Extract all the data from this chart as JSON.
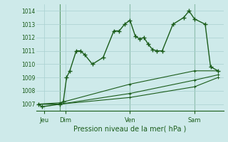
{
  "xlabel": "Pression niveau de la mer( hPa )",
  "bg_color": "#ceeaea",
  "grid_color": "#a8d0d0",
  "line_color": "#1a5c1a",
  "vline_color": "#5a9a6a",
  "ylim": [
    1006.5,
    1014.5
  ],
  "xlim": [
    -0.2,
    17.2
  ],
  "yticks": [
    1007,
    1008,
    1009,
    1010,
    1011,
    1012,
    1013,
    1014
  ],
  "day_positions": [
    0.5,
    2.5,
    8.5,
    14.5
  ],
  "day_labels": [
    "Jeu",
    "Dim",
    "Ven",
    "Sam"
  ],
  "vlines": [
    2.0,
    8.5,
    14.5
  ],
  "series1_x": [
    0.0,
    0.3,
    2.0,
    2.3,
    2.6,
    2.9,
    3.5,
    3.9,
    4.3,
    5.0,
    6.0,
    7.0,
    7.5,
    8.0,
    8.5,
    9.0,
    9.4,
    9.8,
    10.2,
    10.6,
    11.0,
    11.5,
    12.5,
    13.5,
    14.0,
    14.5,
    15.5,
    16.0,
    16.7
  ],
  "series1_y": [
    1007.0,
    1006.8,
    1007.0,
    1007.2,
    1009.0,
    1009.5,
    1011.0,
    1011.0,
    1010.7,
    1010.0,
    1010.5,
    1012.5,
    1012.5,
    1013.0,
    1013.3,
    1012.1,
    1011.9,
    1012.0,
    1011.5,
    1011.1,
    1011.0,
    1011.0,
    1013.0,
    1013.5,
    1014.0,
    1013.4,
    1013.0,
    1009.8,
    1009.5
  ],
  "series2_x": [
    0.0,
    2.0,
    8.5,
    14.5,
    16.7
  ],
  "series2_y": [
    1007.0,
    1007.1,
    1008.5,
    1009.5,
    1009.5
  ],
  "series3_x": [
    0.0,
    2.0,
    8.5,
    14.5,
    16.7
  ],
  "series3_y": [
    1007.0,
    1007.0,
    1007.8,
    1008.8,
    1009.2
  ],
  "series4_x": [
    0.0,
    2.0,
    8.5,
    14.5,
    16.7
  ],
  "series4_y": [
    1007.0,
    1007.0,
    1007.5,
    1008.3,
    1009.0
  ]
}
